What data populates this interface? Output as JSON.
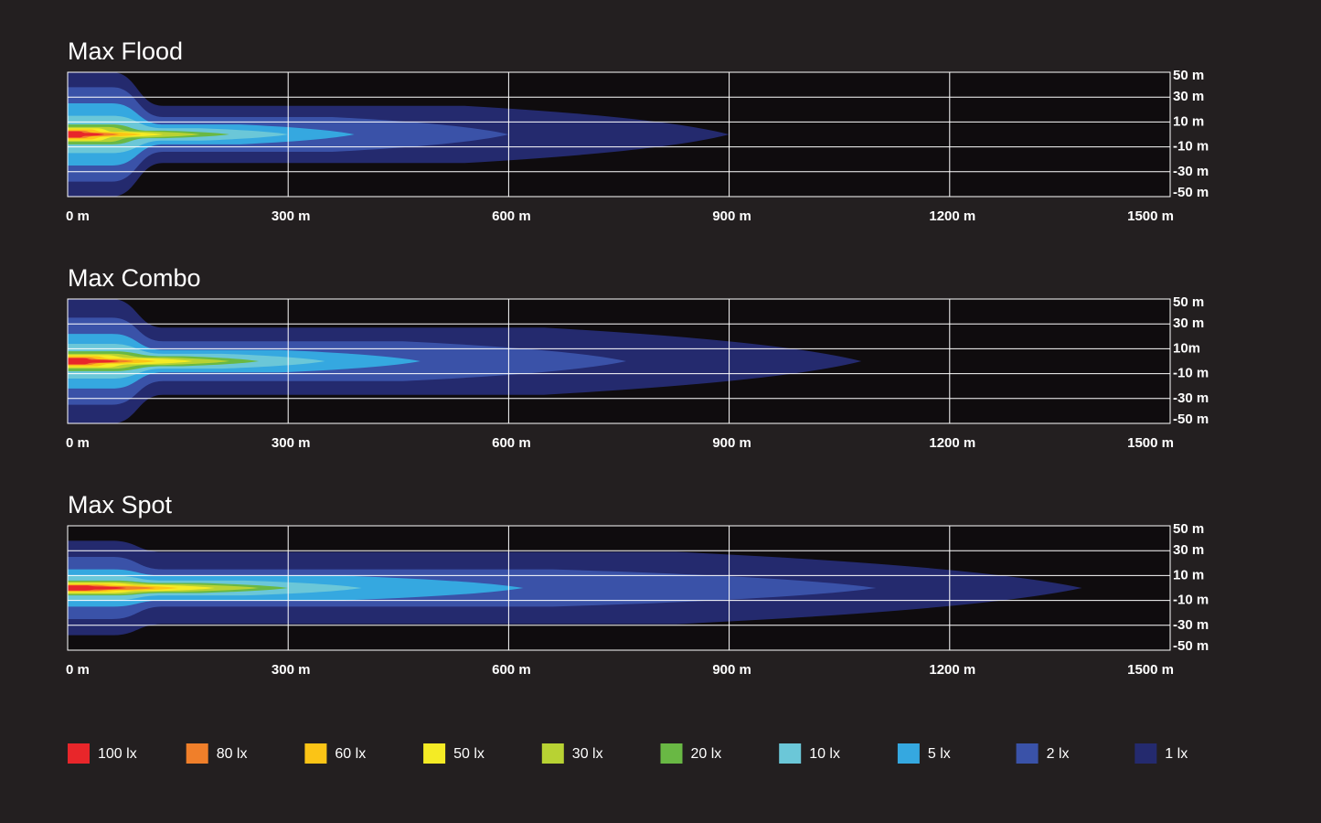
{
  "chart_data": [
    {
      "type": "isolux",
      "title": "Max Flood",
      "xlim": [
        0,
        1500
      ],
      "xticks": [
        {
          "value": 0,
          "label": "0 m"
        },
        {
          "value": 300,
          "label": "300 m"
        },
        {
          "value": 600,
          "label": "600 m"
        },
        {
          "value": 900,
          "label": "900 m"
        },
        {
          "value": 1200,
          "label": "1200 m"
        },
        {
          "value": 1500,
          "label": "1500 m"
        }
      ],
      "ylim": [
        -50,
        50
      ],
      "yticks": [
        {
          "value": 50,
          "label": "50 m"
        },
        {
          "value": 30,
          "label": "30 m"
        },
        {
          "value": 10,
          "label": "10 m"
        },
        {
          "value": -10,
          "label": "-10 m"
        },
        {
          "value": -30,
          "label": "-30 m"
        },
        {
          "value": -50,
          "label": "-50 m"
        }
      ],
      "contours": [
        {
          "reach": 50,
          "width": 1.2,
          "near_width": 2.5
        },
        {
          "reach": 70,
          "width": 1.5,
          "near_width": 3
        },
        {
          "reach": 100,
          "width": 1.8,
          "near_width": 4
        },
        {
          "reach": 130,
          "width": 2,
          "near_width": 5
        },
        {
          "reach": 180,
          "width": 2.5,
          "near_width": 6
        },
        {
          "reach": 220,
          "width": 3,
          "near_width": 8
        },
        {
          "reach": 300,
          "width": 5,
          "near_width": 15
        },
        {
          "reach": 390,
          "width": 8,
          "near_width": 25
        },
        {
          "reach": 600,
          "width": 14,
          "near_width": 38
        },
        {
          "reach": 900,
          "width": 23,
          "near_width": 50
        }
      ]
    },
    {
      "type": "isolux",
      "title": "Max Combo",
      "xlim": [
        0,
        1500
      ],
      "xticks": [
        {
          "value": 0,
          "label": "0 m"
        },
        {
          "value": 300,
          "label": "300 m"
        },
        {
          "value": 600,
          "label": "600 m"
        },
        {
          "value": 900,
          "label": "900 m"
        },
        {
          "value": 1200,
          "label": "1200 m"
        },
        {
          "value": 1500,
          "label": "1500 m"
        }
      ],
      "ylim": [
        -50,
        50
      ],
      "yticks": [
        {
          "value": 50,
          "label": "50 m"
        },
        {
          "value": 30,
          "label": "30 m"
        },
        {
          "value": 10,
          "label": "10m"
        },
        {
          "value": -10,
          "label": "-10 m"
        },
        {
          "value": -30,
          "label": "-30 m"
        },
        {
          "value": -50,
          "label": "-50 m"
        }
      ],
      "contours": [
        {
          "reach": 70,
          "width": 1.2,
          "near_width": 2.5
        },
        {
          "reach": 90,
          "width": 1.5,
          "near_width": 3
        },
        {
          "reach": 120,
          "width": 2,
          "near_width": 4
        },
        {
          "reach": 170,
          "width": 2.5,
          "near_width": 5
        },
        {
          "reach": 220,
          "width": 3,
          "near_width": 6
        },
        {
          "reach": 260,
          "width": 4,
          "near_width": 8
        },
        {
          "reach": 350,
          "width": 6,
          "near_width": 14
        },
        {
          "reach": 480,
          "width": 9,
          "near_width": 22
        },
        {
          "reach": 760,
          "width": 16,
          "near_width": 35
        },
        {
          "reach": 1080,
          "width": 27,
          "near_width": 50
        }
      ]
    },
    {
      "type": "isolux",
      "title": "Max Spot",
      "xlim": [
        0,
        1500
      ],
      "xticks": [
        {
          "value": 0,
          "label": "0 m"
        },
        {
          "value": 300,
          "label": "300 m"
        },
        {
          "value": 600,
          "label": "600 m"
        },
        {
          "value": 900,
          "label": "900 m"
        },
        {
          "value": 1200,
          "label": "1200 m"
        },
        {
          "value": 1500,
          "label": "1500 m"
        }
      ],
      "ylim": [
        -50,
        50
      ],
      "yticks": [
        {
          "value": 50,
          "label": "50 m"
        },
        {
          "value": 30,
          "label": "30 m"
        },
        {
          "value": 10,
          "label": "10 m"
        },
        {
          "value": -10,
          "label": "-10 m"
        },
        {
          "value": -30,
          "label": "-30 m"
        },
        {
          "value": -50,
          "label": "-50 m"
        }
      ],
      "contours": [
        {
          "reach": 80,
          "width": 1.2,
          "near_width": 2
        },
        {
          "reach": 120,
          "width": 1.5,
          "near_width": 2.5
        },
        {
          "reach": 150,
          "width": 2,
          "near_width": 3
        },
        {
          "reach": 200,
          "width": 2.5,
          "near_width": 4
        },
        {
          "reach": 260,
          "width": 3,
          "near_width": 5
        },
        {
          "reach": 300,
          "width": 4,
          "near_width": 6
        },
        {
          "reach": 400,
          "width": 6,
          "near_width": 10
        },
        {
          "reach": 620,
          "width": 10,
          "near_width": 15
        },
        {
          "reach": 1100,
          "width": 15,
          "near_width": 25
        },
        {
          "reach": 1380,
          "width": 29,
          "near_width": 38
        }
      ]
    }
  ],
  "legend": [
    {
      "name": "100 lx",
      "color": "#e8262a"
    },
    {
      "name": "80 lx",
      "color": "#f07f2a"
    },
    {
      "name": "60 lx",
      "color": "#fbc416"
    },
    {
      "name": "50 lx",
      "color": "#f4eb25"
    },
    {
      "name": "30 lx",
      "color": "#b8d233"
    },
    {
      "name": "20 lx",
      "color": "#69b844"
    },
    {
      "name": "10 lx",
      "color": "#6bc7d8"
    },
    {
      "name": "5 lx",
      "color": "#35a8e0"
    },
    {
      "name": "2 lx",
      "color": "#3a52a8"
    },
    {
      "name": "1 lx",
      "color": "#242a6e"
    }
  ]
}
